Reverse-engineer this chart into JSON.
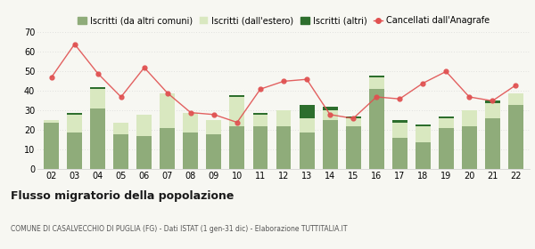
{
  "years": [
    "02",
    "03",
    "04",
    "05",
    "06",
    "07",
    "08",
    "09",
    "10",
    "11",
    "12",
    "13",
    "14",
    "15",
    "16",
    "17",
    "18",
    "19",
    "20",
    "21",
    "22"
  ],
  "iscritti_comuni": [
    24,
    19,
    31,
    18,
    17,
    21,
    19,
    18,
    22,
    22,
    22,
    19,
    25,
    22,
    41,
    16,
    14,
    21,
    22,
    26,
    33
  ],
  "iscritti_estero": [
    1,
    9,
    10,
    6,
    11,
    18,
    10,
    7,
    15,
    6,
    8,
    7,
    5,
    4,
    6,
    8,
    8,
    5,
    8,
    8,
    6
  ],
  "iscritti_altri": [
    0,
    1,
    1,
    0,
    0,
    0,
    0,
    0,
    1,
    1,
    0,
    7,
    2,
    1,
    1,
    1,
    1,
    1,
    0,
    1,
    0
  ],
  "cancellati": [
    47,
    64,
    49,
    37,
    52,
    39,
    29,
    28,
    24,
    41,
    45,
    46,
    28,
    26,
    37,
    36,
    44,
    50,
    37,
    35,
    43
  ],
  "color_comuni": "#8fac7a",
  "color_estero": "#d9e8c0",
  "color_altri": "#2d6e2d",
  "color_cancellati": "#e05050",
  "bg_color": "#f7f7f2",
  "title": "Flusso migratorio della popolazione",
  "subtitle": "COMUNE DI CASALVECCHIO DI PUGLIA (FG) - Dati ISTAT (1 gen-31 dic) - Elaborazione TUTTITALIA.IT",
  "legend_labels": [
    "Iscritti (da altri comuni)",
    "Iscritti (dall'estero)",
    "Iscritti (altri)",
    "Cancellati dall'Anagrafe"
  ],
  "ylim": [
    0,
    70
  ],
  "yticks": [
    0,
    10,
    20,
    30,
    40,
    50,
    60,
    70
  ],
  "title_fontsize": 9,
  "subtitle_fontsize": 5.5,
  "tick_fontsize": 7,
  "legend_fontsize": 7
}
